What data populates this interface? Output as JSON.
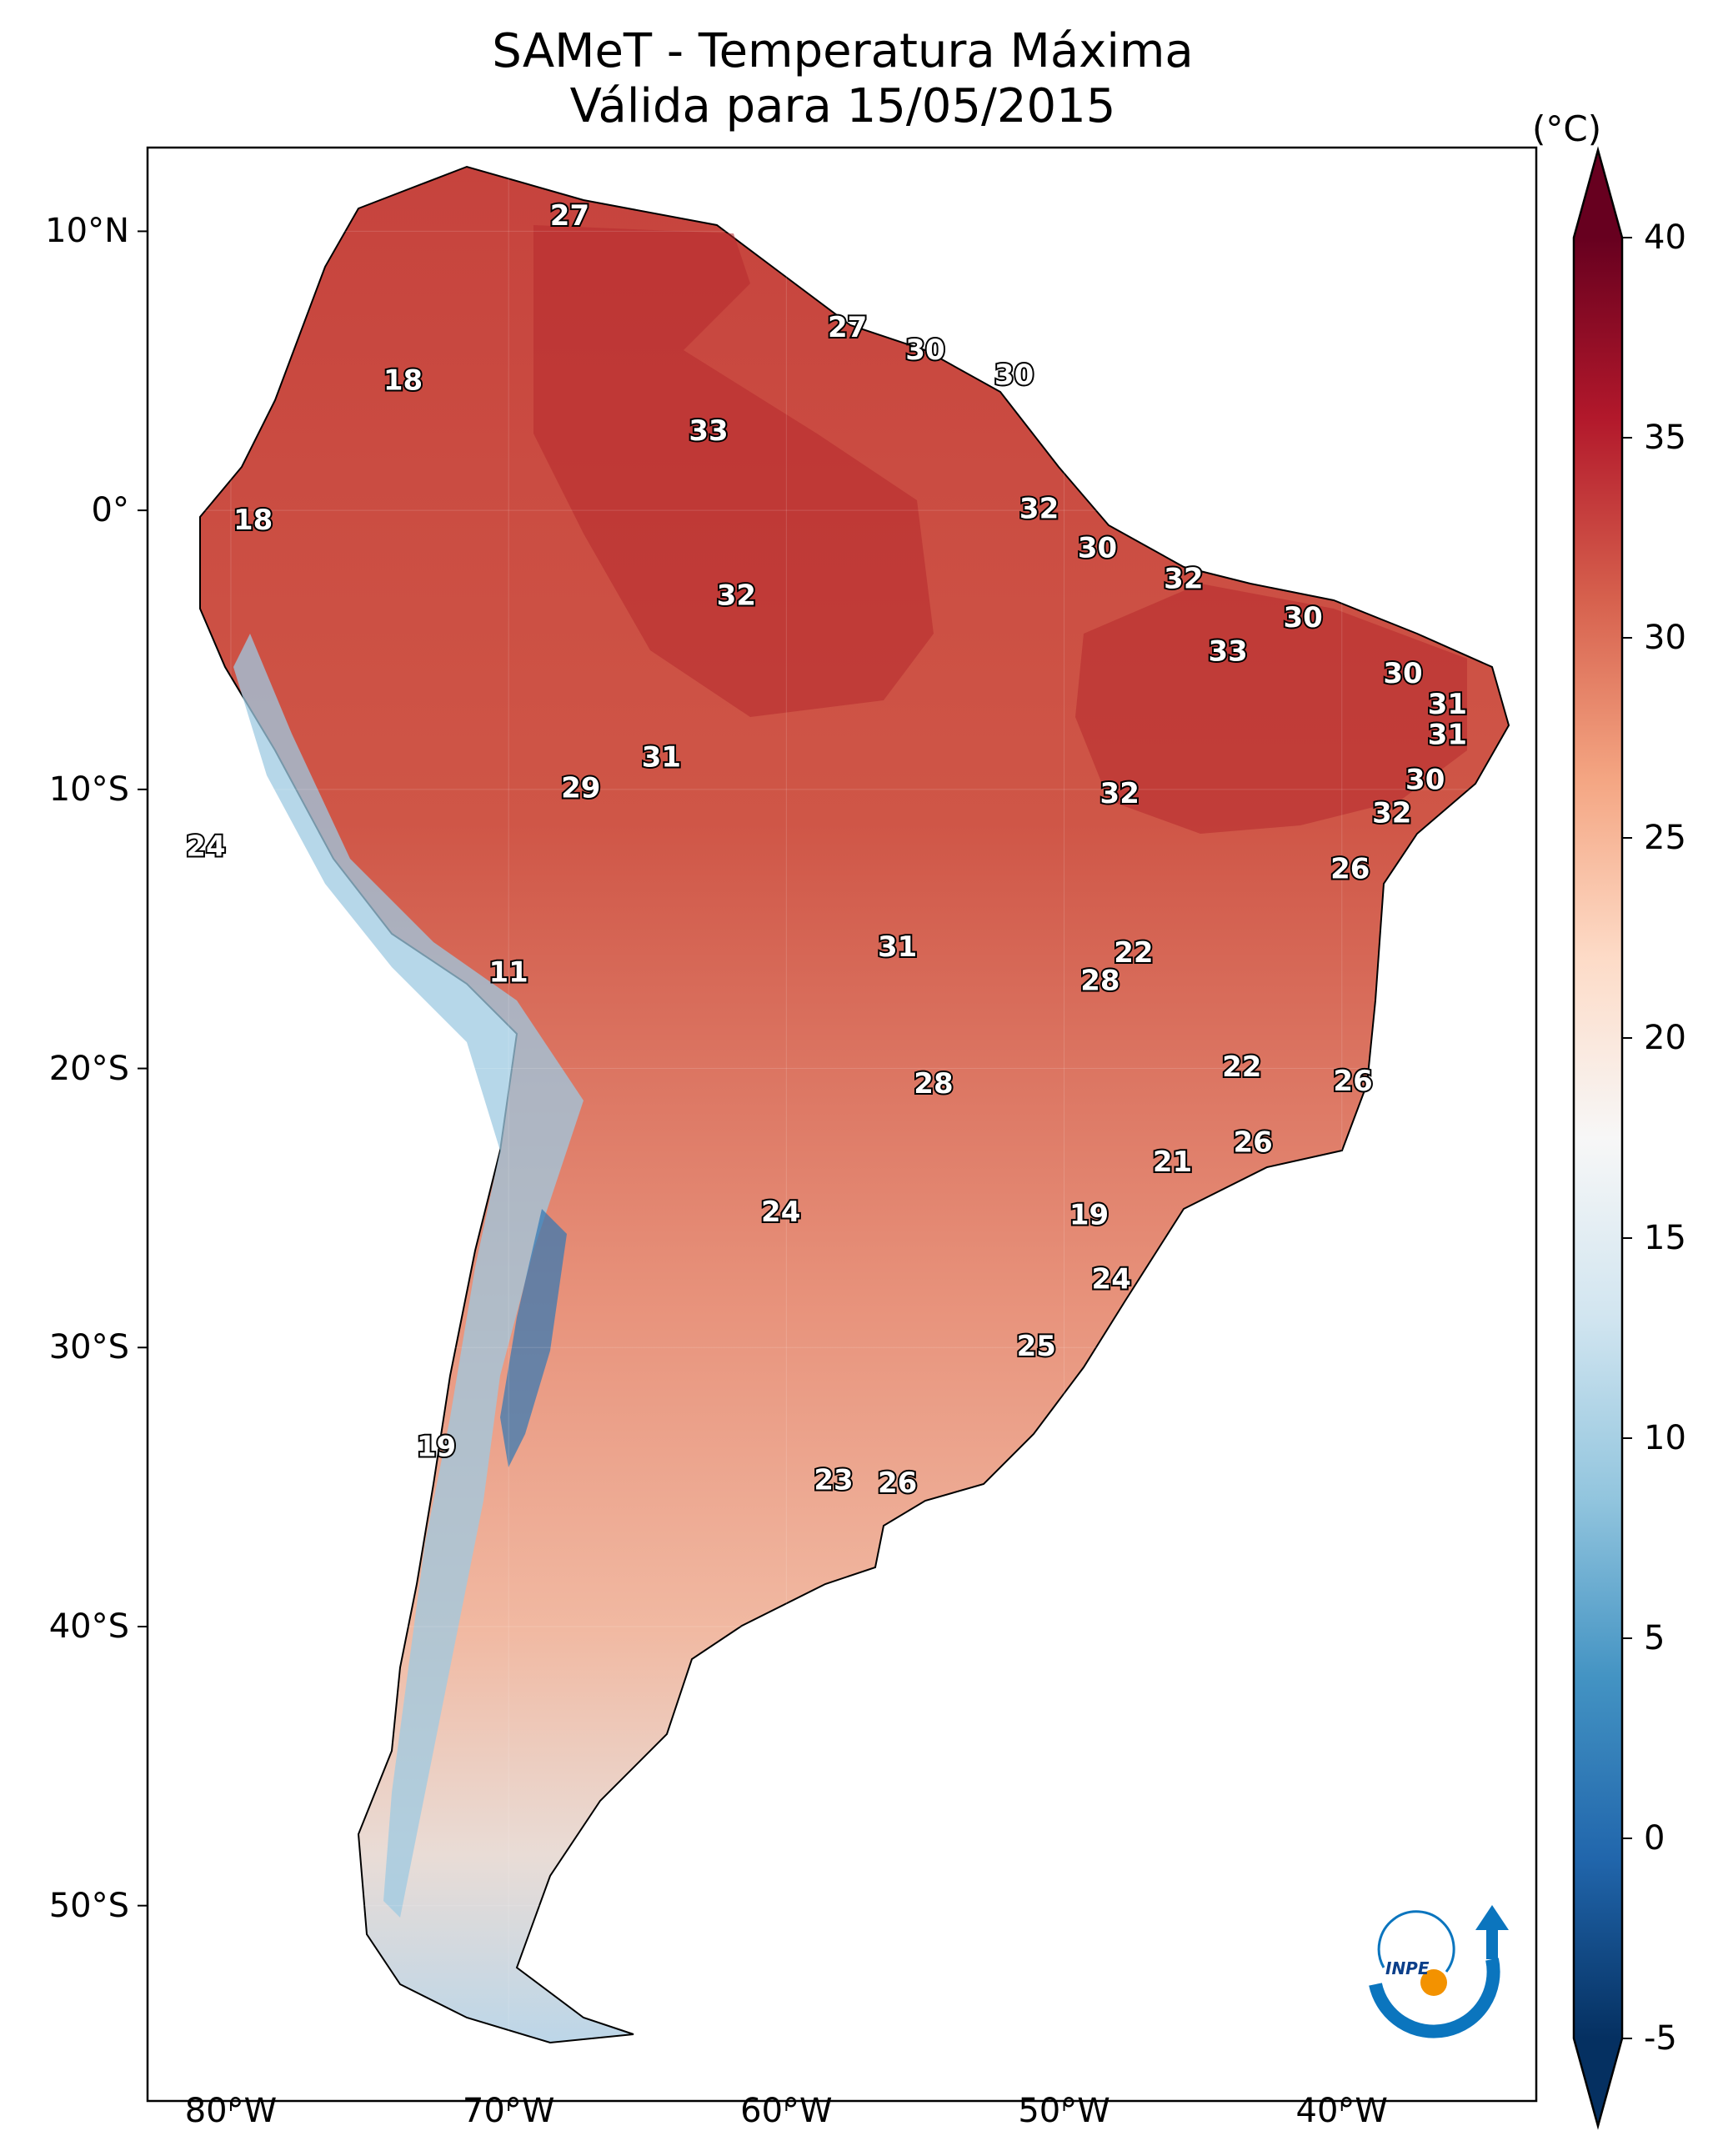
{
  "title": {
    "line1": "SAMeT - Temperatura Máxima",
    "line2": "Válida para 15/05/2015"
  },
  "map_data": {
    "projection": "PlateCarree",
    "extent_lon": [
      -83,
      -33
    ],
    "extent_lat": [
      -57,
      13
    ],
    "lat_ticks": [
      {
        "lat": 10,
        "label": "10°N"
      },
      {
        "lat": 0,
        "label": "0°"
      },
      {
        "lat": -10,
        "label": "10°S"
      },
      {
        "lat": -20,
        "label": "20°S"
      },
      {
        "lat": -30,
        "label": "30°S"
      },
      {
        "lat": -40,
        "label": "40°S"
      },
      {
        "lat": -50,
        "label": "50°S"
      }
    ],
    "lon_ticks": [
      {
        "lon": -80,
        "label": "80°W"
      },
      {
        "lon": -70,
        "label": "70°W"
      },
      {
        "lon": -60,
        "label": "60°W"
      },
      {
        "lon": -50,
        "label": "50°W"
      },
      {
        "lon": -40,
        "label": "40°W"
      }
    ],
    "temperature_labels": [
      {
        "lon": -67.8,
        "lat": 10.5,
        "text": "27"
      },
      {
        "lon": -57.8,
        "lat": 6.5,
        "text": "27"
      },
      {
        "lon": -55.0,
        "lat": 5.7,
        "text": "30"
      },
      {
        "lon": -51.8,
        "lat": 4.8,
        "text": "30"
      },
      {
        "lon": -73.8,
        "lat": 4.6,
        "text": "18"
      },
      {
        "lon": -62.8,
        "lat": 2.8,
        "text": "33"
      },
      {
        "lon": -50.9,
        "lat": 0.0,
        "text": "32"
      },
      {
        "lon": -79.2,
        "lat": -0.4,
        "text": "18"
      },
      {
        "lon": -48.8,
        "lat": -1.4,
        "text": "30"
      },
      {
        "lon": -61.8,
        "lat": -3.1,
        "text": "32"
      },
      {
        "lon": -45.7,
        "lat": -2.5,
        "text": "32"
      },
      {
        "lon": -41.4,
        "lat": -3.9,
        "text": "30"
      },
      {
        "lon": -44.1,
        "lat": -5.1,
        "text": "33"
      },
      {
        "lon": -37.8,
        "lat": -5.9,
        "text": "30"
      },
      {
        "lon": -36.2,
        "lat": -7.0,
        "text": "31"
      },
      {
        "lon": -36.2,
        "lat": -8.1,
        "text": "31"
      },
      {
        "lon": -64.5,
        "lat": -8.9,
        "text": "31"
      },
      {
        "lon": -67.4,
        "lat": -10.0,
        "text": "29"
      },
      {
        "lon": -37.0,
        "lat": -9.7,
        "text": "30"
      },
      {
        "lon": -48.0,
        "lat": -10.2,
        "text": "32"
      },
      {
        "lon": -38.2,
        "lat": -10.9,
        "text": "32"
      },
      {
        "lon": -80.9,
        "lat": -12.1,
        "text": "24"
      },
      {
        "lon": -39.7,
        "lat": -12.9,
        "text": "26"
      },
      {
        "lon": -56.0,
        "lat": -15.7,
        "text": "31"
      },
      {
        "lon": -47.5,
        "lat": -15.9,
        "text": "22"
      },
      {
        "lon": -48.7,
        "lat": -16.9,
        "text": "28"
      },
      {
        "lon": -70.0,
        "lat": -16.6,
        "text": "11"
      },
      {
        "lon": -43.6,
        "lat": -20.0,
        "text": "22"
      },
      {
        "lon": -39.6,
        "lat": -20.5,
        "text": "26"
      },
      {
        "lon": -54.7,
        "lat": -20.6,
        "text": "28"
      },
      {
        "lon": -43.2,
        "lat": -22.7,
        "text": "26"
      },
      {
        "lon": -46.1,
        "lat": -23.4,
        "text": "21"
      },
      {
        "lon": -60.2,
        "lat": -25.2,
        "text": "24"
      },
      {
        "lon": -49.1,
        "lat": -25.3,
        "text": "19"
      },
      {
        "lon": -48.3,
        "lat": -27.6,
        "text": "24"
      },
      {
        "lon": -51.0,
        "lat": -30.0,
        "text": "25"
      },
      {
        "lon": -72.6,
        "lat": -33.6,
        "text": "19"
      },
      {
        "lon": -58.3,
        "lat": -34.8,
        "text": "23"
      },
      {
        "lon": -56.0,
        "lat": -34.9,
        "text": "26"
      }
    ]
  },
  "colorbar": {
    "units": "(°C)",
    "ticks": [
      {
        "value": 40,
        "label": "40"
      },
      {
        "value": 35,
        "label": "35"
      },
      {
        "value": 30,
        "label": "30"
      },
      {
        "value": 25,
        "label": "25"
      },
      {
        "value": 20,
        "label": "20"
      },
      {
        "value": 15,
        "label": "15"
      },
      {
        "value": 10,
        "label": "10"
      },
      {
        "value": 5,
        "label": "5"
      },
      {
        "value": 0,
        "label": "0"
      },
      {
        "value": -5,
        "label": "-5"
      }
    ],
    "vmin": -5,
    "vmax": 40,
    "colors": [
      "#053061",
      "#2166ac",
      "#4393c3",
      "#92c5de",
      "#d1e5f0",
      "#f7f7f7",
      "#fddbc7",
      "#f4a582",
      "#d6604d",
      "#b2182b",
      "#67001f"
    ]
  },
  "logo": {
    "text": "INPE",
    "blue": "#0b75be",
    "orange": "#f39200"
  }
}
